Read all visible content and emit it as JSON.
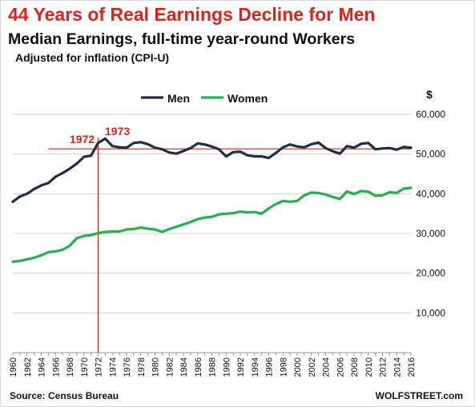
{
  "title": "44 Years of Real Earnings Decline for Men",
  "subtitle": "Median Earnings, full-time year-round Workers",
  "note": "Adjusted for inflation (CPI-U)",
  "source": "Source: Census Bureau",
  "brand": "WOLFSTREET.com",
  "colors": {
    "men": "#1f2d45",
    "women": "#21b24b",
    "reference": "#e0201b",
    "grid": "#d0d0d0"
  },
  "chart_data": {
    "type": "line",
    "title": "44 Years of Real Earnings Decline for Men",
    "subtitle": "Median Earnings, full-time year-round Workers",
    "ylabel": "$",
    "ylim": [
      0,
      60000
    ],
    "yticks": [
      10000,
      20000,
      30000,
      40000,
      50000,
      60000
    ],
    "ytick_labels": [
      "10,000",
      "20,000",
      "30,000",
      "40,000",
      "50,000",
      "60,000"
    ],
    "grid": true,
    "legend_position": "top",
    "x": [
      1960,
      1961,
      1962,
      1963,
      1964,
      1965,
      1966,
      1967,
      1968,
      1969,
      1970,
      1971,
      1972,
      1973,
      1974,
      1975,
      1976,
      1977,
      1978,
      1979,
      1980,
      1981,
      1982,
      1983,
      1984,
      1985,
      1986,
      1987,
      1988,
      1989,
      1990,
      1991,
      1992,
      1993,
      1994,
      1995,
      1996,
      1997,
      1998,
      1999,
      2000,
      2001,
      2002,
      2003,
      2004,
      2005,
      2006,
      2007,
      2008,
      2009,
      2010,
      2011,
      2012,
      2013,
      2014,
      2015,
      2016
    ],
    "xtick_labels": [
      "1960",
      "1962",
      "1964",
      "1966",
      "1968",
      "1970",
      "1972",
      "1974",
      "1976",
      "1978",
      "1980",
      "1982",
      "1984",
      "1986",
      "1988",
      "1990",
      "1992",
      "1994",
      "1996",
      "1998",
      "2000",
      "2002",
      "2004",
      "2006",
      "2008",
      "2010",
      "2012",
      "2014",
      "2016"
    ],
    "series": [
      {
        "name": "Men",
        "color": "#1f2d45",
        "values": [
          38000,
          39300,
          40000,
          41200,
          42100,
          42700,
          44300,
          45200,
          46300,
          47600,
          49300,
          49600,
          52800,
          53900,
          52000,
          51700,
          51600,
          52800,
          53000,
          52500,
          51600,
          51200,
          50400,
          50100,
          50800,
          51500,
          52700,
          52400,
          51900,
          51200,
          49400,
          50500,
          50600,
          49700,
          49400,
          49400,
          49000,
          50300,
          51700,
          52400,
          51900,
          51700,
          52500,
          52900,
          51500,
          50700,
          50100,
          52000,
          51600,
          52600,
          52800,
          51200,
          51400,
          51500,
          51100,
          51800,
          51600
        ]
      },
      {
        "name": "Women",
        "color": "#21b24b",
        "values": [
          22900,
          23100,
          23500,
          23900,
          24500,
          25300,
          25500,
          25900,
          26900,
          28800,
          29400,
          29600,
          30100,
          30400,
          30500,
          30500,
          31000,
          31100,
          31500,
          31200,
          31000,
          30400,
          31100,
          31700,
          32300,
          32900,
          33600,
          34000,
          34200,
          34800,
          35000,
          35100,
          35500,
          35300,
          35400,
          35000,
          36300,
          37400,
          38200,
          38000,
          38200,
          39600,
          40300,
          40200,
          39800,
          39200,
          38700,
          40600,
          39900,
          40700,
          40500,
          39500,
          39600,
          40400,
          40200,
          41300,
          41500
        ]
      }
    ],
    "reference_line": {
      "y": 51300,
      "x_from": 1965
    },
    "annotations": [
      {
        "text": "1972",
        "x": 1972,
        "color": "#e0201b"
      },
      {
        "text": "1973",
        "x": 1973,
        "color": "#e0201b"
      }
    ]
  }
}
